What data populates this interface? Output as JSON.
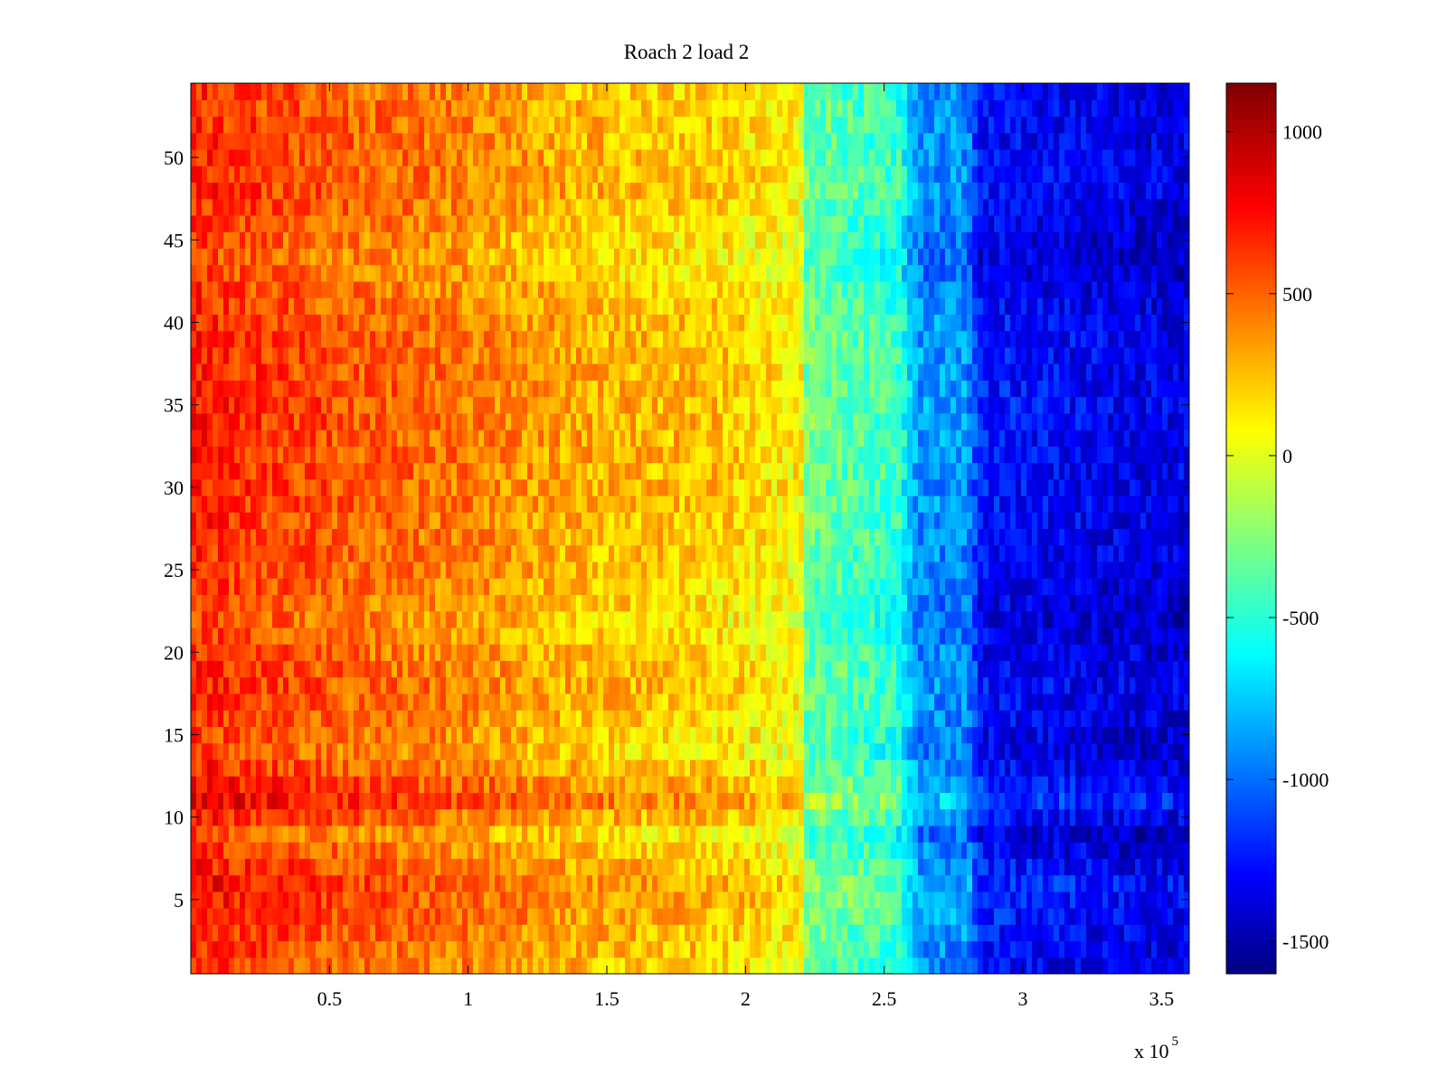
{
  "chart_data": {
    "type": "heatmap",
    "title": "Roach 2 load 2",
    "xlabel": "",
    "ylabel": "",
    "x_range": [
      0,
      360000
    ],
    "y_range": [
      0.5,
      54.5
    ],
    "rows": 54,
    "x_ticks": [
      50000,
      100000,
      150000,
      200000,
      250000,
      300000,
      350000
    ],
    "x_tick_labels": [
      "0.5",
      "1",
      "1.5",
      "2",
      "2.5",
      "3",
      "3.5"
    ],
    "x_exponent_label": "x 10",
    "x_exponent": "5",
    "y_ticks": [
      5,
      10,
      15,
      20,
      25,
      30,
      35,
      40,
      45,
      50
    ],
    "y_tick_labels": [
      "5",
      "10",
      "15",
      "20",
      "25",
      "30",
      "35",
      "40",
      "45",
      "50"
    ],
    "colorbar": {
      "colormap": "jet",
      "range": [
        -1600,
        1150
      ],
      "ticks": [
        1000,
        500,
        0,
        -500,
        -1000,
        -1500
      ],
      "tick_labels": [
        "1000",
        "500",
        "0",
        "-500",
        "-1000",
        "-1500"
      ]
    },
    "column_profile": [
      {
        "x": 0,
        "value": 700
      },
      {
        "x": 30000,
        "value": 600
      },
      {
        "x": 60000,
        "value": 520
      },
      {
        "x": 100000,
        "value": 440
      },
      {
        "x": 125000,
        "value": 340
      },
      {
        "x": 150000,
        "value": 280
      },
      {
        "x": 190000,
        "value": 230
      },
      {
        "x": 220000,
        "value": 100
      },
      {
        "x": 222000,
        "value": -300
      },
      {
        "x": 255000,
        "value": -450
      },
      {
        "x": 262000,
        "value": -880
      },
      {
        "x": 280000,
        "value": -900
      },
      {
        "x": 285000,
        "value": -1250
      },
      {
        "x": 340000,
        "value": -1350
      },
      {
        "x": 360000,
        "value": -1350
      }
    ],
    "row_profile": [
      {
        "row": 1,
        "offset": 0
      },
      {
        "row": 6,
        "offset": 120
      },
      {
        "row": 9,
        "offset": -80
      },
      {
        "row": 11,
        "offset": 180
      },
      {
        "row": 14,
        "offset": -60
      },
      {
        "row": 18,
        "offset": 40
      },
      {
        "row": 22,
        "offset": -60
      },
      {
        "row": 25,
        "offset": 0
      },
      {
        "row": 30,
        "offset": 40
      },
      {
        "row": 35,
        "offset": 60
      },
      {
        "row": 40,
        "offset": 40
      },
      {
        "row": 44,
        "offset": -80
      },
      {
        "row": 48,
        "offset": 40
      },
      {
        "row": 54,
        "offset": 0
      }
    ]
  }
}
